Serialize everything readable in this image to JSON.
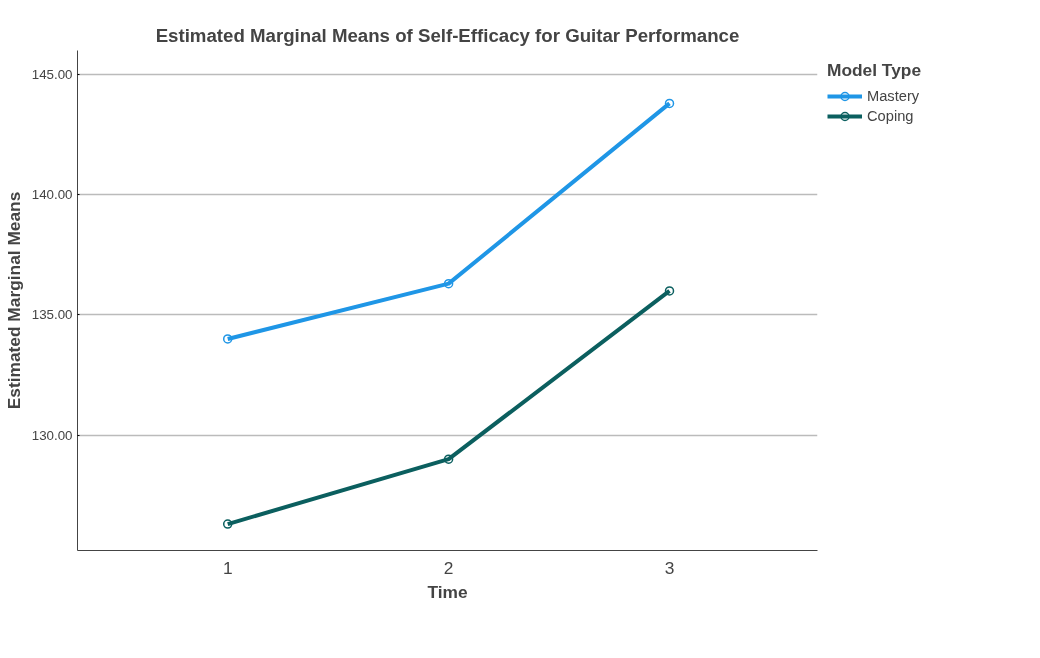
{
  "chart_data": {
    "type": "line",
    "title": "Estimated Marginal Means of Self-Efficacy for Guitar Performance",
    "xlabel": "Time",
    "ylabel": "Estimated Marginal Means",
    "legend_title": "Model Type",
    "categories": [
      "1",
      "2",
      "3"
    ],
    "series": [
      {
        "name": "Mastery",
        "color": "#1f96e6",
        "values": [
          134.0,
          136.3,
          143.8
        ]
      },
      {
        "name": "Coping",
        "color": "#0b5f5f",
        "values": [
          126.3,
          129.0,
          136.0
        ]
      }
    ],
    "ylim": [
      125.2,
      146.0
    ],
    "yticks": [
      {
        "value": 130,
        "label": "130.00"
      },
      {
        "value": 135,
        "label": "135.00"
      },
      {
        "value": 140,
        "label": "140.00"
      },
      {
        "value": 145,
        "label": "145.00"
      }
    ],
    "grid": "y",
    "legend": "top right",
    "marker": "circle",
    "line_style": "solid"
  }
}
